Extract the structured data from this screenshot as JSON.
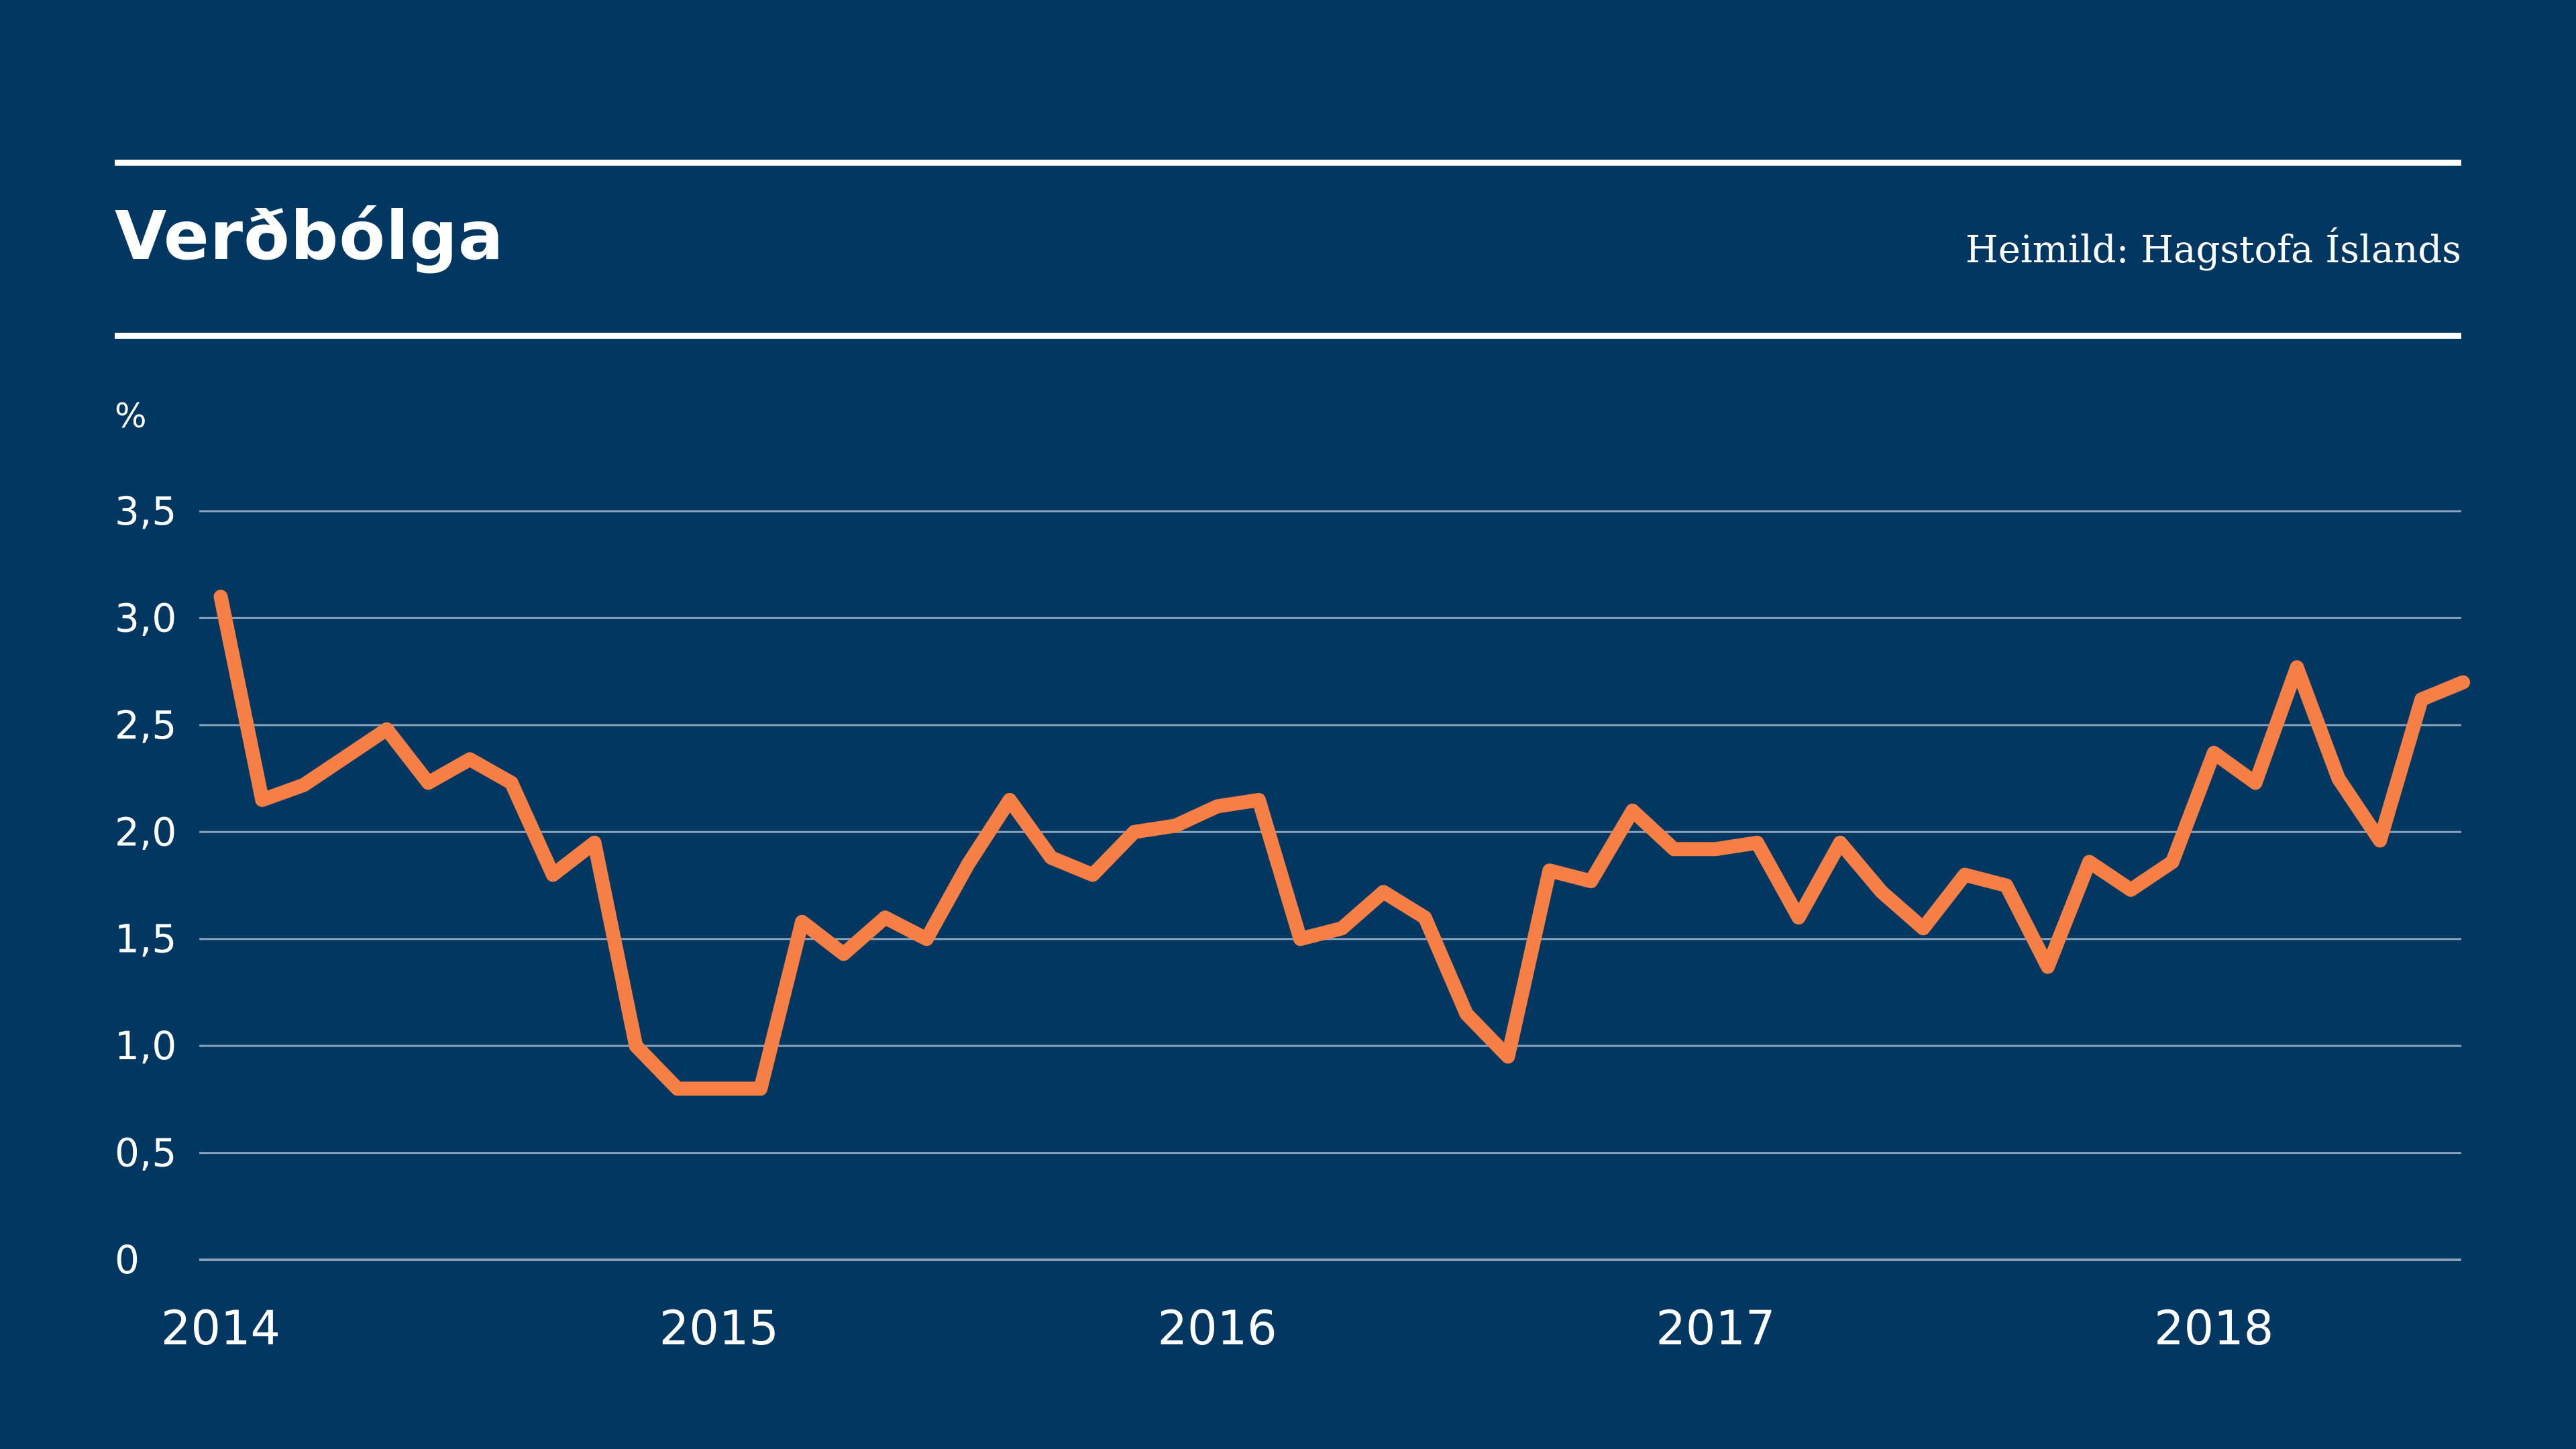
{
  "header": {
    "title": "Verðbólga",
    "source": "Heimild: Hagstofa Íslands"
  },
  "colors": {
    "background": "#023761",
    "line": "#f57f45",
    "grid": "#8a9fb8",
    "text": "#ffffff"
  },
  "chart_data": {
    "type": "line",
    "title": "Verðbólga",
    "ylabel": "%",
    "xlabel": "",
    "ylim": [
      0,
      3.5
    ],
    "yticks": [
      "0",
      "0,5",
      "1,0",
      "1,5",
      "2,0",
      "2,5",
      "3,0",
      "3,5"
    ],
    "yticks_values": [
      0,
      0.5,
      1.0,
      1.5,
      2.0,
      2.5,
      3.0,
      3.5
    ],
    "xticks": [
      "2014",
      "2015",
      "2016",
      "2017",
      "2018"
    ],
    "grid": true,
    "legend": "none",
    "x": [
      "2014-01",
      "2014-02",
      "2014-03",
      "2014-04",
      "2014-05",
      "2014-06",
      "2014-07",
      "2014-08",
      "2014-09",
      "2014-10",
      "2014-11",
      "2014-12",
      "2015-01",
      "2015-02",
      "2015-03",
      "2015-04",
      "2015-05",
      "2015-06",
      "2015-07",
      "2015-08",
      "2015-09",
      "2015-10",
      "2015-11",
      "2015-12",
      "2016-01",
      "2016-02",
      "2016-03",
      "2016-04",
      "2016-05",
      "2016-06",
      "2016-07",
      "2016-08",
      "2016-09",
      "2016-10",
      "2016-11",
      "2016-12",
      "2017-01",
      "2017-02",
      "2017-03",
      "2017-04",
      "2017-05",
      "2017-06",
      "2017-07",
      "2017-08",
      "2017-09",
      "2017-10",
      "2017-11",
      "2017-12",
      "2018-01",
      "2018-02",
      "2018-03",
      "2018-04",
      "2018-05",
      "2018-06",
      "2018-07"
    ],
    "series": [
      {
        "values": [
          3.1,
          2.15,
          2.22,
          2.35,
          2.48,
          2.23,
          2.34,
          2.23,
          1.8,
          1.95,
          1.0,
          0.8,
          0.8,
          0.8,
          1.58,
          1.43,
          1.6,
          1.5,
          1.85,
          2.15,
          1.88,
          1.8,
          2.0,
          2.03,
          2.12,
          2.15,
          1.5,
          1.55,
          1.72,
          1.6,
          1.15,
          0.95,
          1.82,
          1.77,
          2.1,
          1.92,
          1.92,
          1.95,
          1.6,
          1.95,
          1.72,
          1.55,
          1.8,
          1.75,
          1.37,
          1.86,
          1.73,
          1.86,
          2.37,
          2.23,
          2.77,
          2.25,
          1.96,
          2.62,
          2.7
        ]
      }
    ]
  }
}
